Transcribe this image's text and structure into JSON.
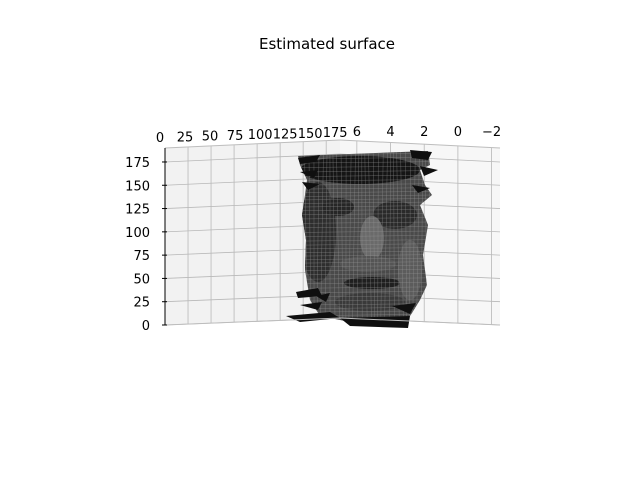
{
  "chart_data": {
    "type": "surface3d",
    "title": "Estimated surface",
    "xlabel": "",
    "ylabel": "",
    "zlabel": "",
    "grid": true,
    "colormap": "gray",
    "x_axis": {
      "ticks": [
        "0",
        "25",
        "50",
        "75",
        "100",
        "125",
        "150",
        "175"
      ],
      "range": [
        0,
        190
      ]
    },
    "y_axis": {
      "ticks": [
        "6",
        "4",
        "2",
        "0",
        "−2"
      ],
      "range": [
        7,
        -2.5
      ]
    },
    "z_axis": {
      "ticks": [
        "0",
        "25",
        "50",
        "75",
        "100",
        "125",
        "150",
        "175"
      ],
      "range": [
        0,
        190
      ]
    },
    "surface": {
      "description": "estimated height map of a face, rendered as a dark mesh",
      "z_extent": [
        0,
        180
      ]
    }
  }
}
